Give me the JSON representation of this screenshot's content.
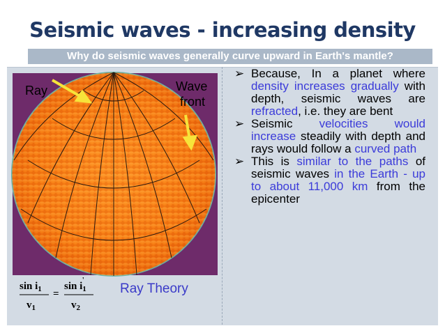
{
  "title": "Seismic waves - increasing density",
  "subtitle": "Why do seismic waves generally curve upward in Earth's mantle?",
  "figure": {
    "ray_label": "Ray",
    "wave_label": "Wave",
    "front_label": "front"
  },
  "formula": {
    "left_num": "sin i",
    "left_num_sub": "1",
    "left_den": "v",
    "left_den_sub": "1",
    "equals": "=",
    "right_num": "sin i",
    "right_num_sub": "1",
    "right_num_prime": "'",
    "right_den": "v",
    "right_den_sub": "2"
  },
  "caption": "Ray Theory",
  "bullet_marker": "➢",
  "bullets": [
    [
      {
        "text": "Because, In a planet where "
      },
      {
        "text": "density increases gradually",
        "highlight": true
      },
      {
        "text": " with depth, seismic waves are "
      },
      {
        "text": "refracted",
        "highlight": true
      },
      {
        "text": ", i.e. they are bent"
      }
    ],
    [
      {
        "text": "Seismic "
      },
      {
        "text": "velocities would increase",
        "highlight": true
      },
      {
        "text": " steadily with depth and rays would follow a "
      },
      {
        "text": "curved path",
        "highlight": true
      }
    ],
    [
      {
        "text": " This is "
      },
      {
        "text": "similar to the paths",
        "highlight": true
      },
      {
        "text": " of seismic waves "
      },
      {
        "text": "in the Earth - up to about 11,000 km",
        "highlight": true
      },
      {
        "text": " from the epicenter"
      }
    ]
  ]
}
